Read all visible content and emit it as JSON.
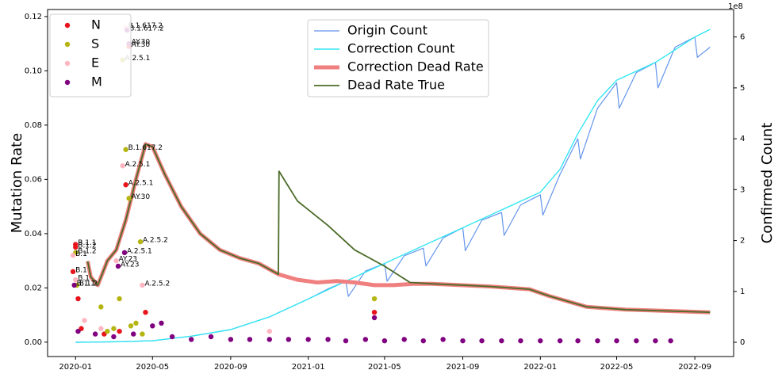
{
  "chart_data": {
    "type": "scatter",
    "ylabel": "Mutation Rate",
    "y2label": "Confirmed Count",
    "y2offset": "1e8",
    "xlim": [
      "2019-11-18",
      "2022-11-01"
    ],
    "ylim": [
      -0.0053,
      0.1226
    ],
    "y2lim": [
      -0.28,
      6.54
    ],
    "xticks": [
      {
        "value": "2020-01-01",
        "label": "2020-01"
      },
      {
        "value": "2020-05-01",
        "label": "2020-05"
      },
      {
        "value": "2020-09-01",
        "label": "2020-09"
      },
      {
        "value": "2021-01-01",
        "label": "2021-01"
      },
      {
        "value": "2021-05-01",
        "label": "2021-05"
      },
      {
        "value": "2021-09-01",
        "label": "2021-09"
      },
      {
        "value": "2022-01-01",
        "label": "2022-01"
      },
      {
        "value": "2022-05-01",
        "label": "2022-05"
      },
      {
        "value": "2022-09-01",
        "label": "2022-09"
      }
    ],
    "yticks": [
      {
        "value": 0,
        "label": "0.00"
      },
      {
        "value": 0.02,
        "label": "0.02"
      },
      {
        "value": 0.04,
        "label": "0.04"
      },
      {
        "value": 0.06,
        "label": "0.06"
      },
      {
        "value": 0.08,
        "label": "0.08"
      },
      {
        "value": 0.1,
        "label": "0.10"
      },
      {
        "value": 0.12,
        "label": "0.12"
      }
    ],
    "y2ticks": [
      0,
      1,
      2,
      3,
      4,
      5,
      6
    ],
    "legend": [
      "upper left",
      "upper center"
    ],
    "series": [
      {
        "name": "Origin Count",
        "type": "line",
        "axis": "y2",
        "color": "#6495ed",
        "width": 1.2,
        "legend": 1,
        "x": [
          "2020-01-01",
          "2020-03-01",
          "2020-05-01",
          "2020-07-01",
          "2020-09-01",
          "2020-11-01",
          "2021-01-01",
          "2021-02-01",
          "2021-03-01",
          "2021-03-05",
          "2021-04-01",
          "2021-05-01",
          "2021-05-05",
          "2021-06-01",
          "2021-07-01",
          "2021-07-05",
          "2021-08-01",
          "2021-09-01",
          "2021-09-05",
          "2021-10-01",
          "2021-11-01",
          "2021-11-05",
          "2021-12-01",
          "2022-01-01",
          "2022-01-05",
          "2022-02-01",
          "2022-03-01",
          "2022-03-05",
          "2022-04-01",
          "2022-05-01",
          "2022-05-05",
          "2022-06-01",
          "2022-07-01",
          "2022-07-05",
          "2022-08-01",
          "2022-09-01",
          "2022-09-05",
          "2022-09-25"
        ],
        "values": [
          0,
          0.01,
          0.03,
          0.12,
          0.25,
          0.5,
          0.85,
          1.05,
          1.2,
          0.9,
          1.4,
          1.55,
          1.2,
          1.7,
          1.85,
          1.5,
          2.05,
          2.25,
          1.8,
          2.4,
          2.55,
          2.1,
          2.7,
          2.9,
          2.5,
          3.3,
          4.0,
          3.6,
          4.6,
          5.1,
          4.6,
          5.3,
          5.5,
          5.0,
          5.8,
          6.0,
          5.6,
          5.8
        ]
      },
      {
        "name": "Correction Count",
        "type": "line",
        "axis": "y2",
        "color": "#33e6f2",
        "width": 1.4,
        "legend": 1,
        "x": [
          "2020-01-01",
          "2020-03-01",
          "2020-05-01",
          "2020-07-01",
          "2020-09-01",
          "2020-11-01",
          "2021-01-01",
          "2021-03-01",
          "2021-05-01",
          "2021-07-01",
          "2021-09-01",
          "2021-11-01",
          "2022-01-01",
          "2022-02-01",
          "2022-03-01",
          "2022-04-01",
          "2022-05-01",
          "2022-07-01",
          "2022-09-01",
          "2022-09-25"
        ],
        "values": [
          0,
          0.01,
          0.03,
          0.12,
          0.25,
          0.5,
          0.85,
          1.2,
          1.55,
          1.9,
          2.25,
          2.6,
          2.95,
          3.4,
          4.1,
          4.75,
          5.15,
          5.5,
          6.0,
          6.15
        ]
      },
      {
        "name": "Correction Dead Rate",
        "type": "line",
        "color": "#f08080",
        "width": 5,
        "legend": 1,
        "x": [
          "2020-01-20",
          "2020-01-25",
          "2020-02-05",
          "2020-02-20",
          "2020-03-05",
          "2020-03-20",
          "2020-04-05",
          "2020-04-20",
          "2020-05-01",
          "2020-05-20",
          "2020-06-15",
          "2020-07-15",
          "2020-08-15",
          "2020-09-15",
          "2020-10-15",
          "2020-11-15",
          "2020-12-15",
          "2021-01-15",
          "2021-02-15",
          "2021-03-15",
          "2021-04-15",
          "2021-05-15",
          "2021-06-15",
          "2021-07-15",
          "2021-10-15",
          "2021-12-15",
          "2022-01-15",
          "2022-03-15",
          "2022-05-15",
          "2022-09-25"
        ],
        "values": [
          0.0298,
          0.024,
          0.021,
          0.03,
          0.034,
          0.045,
          0.06,
          0.073,
          0.072,
          0.062,
          0.05,
          0.04,
          0.034,
          0.031,
          0.029,
          0.025,
          0.023,
          0.022,
          0.0225,
          0.022,
          0.021,
          0.021,
          0.0215,
          0.0215,
          0.0205,
          0.0195,
          0.017,
          0.013,
          0.012,
          0.011
        ]
      },
      {
        "name": "Dead Rate True",
        "type": "line",
        "color": "#4b6b28",
        "width": 1.8,
        "legend": 1,
        "x": [
          "2020-01-20",
          "2020-01-25",
          "2020-02-05",
          "2020-02-20",
          "2020-03-05",
          "2020-03-20",
          "2020-04-05",
          "2020-04-20",
          "2020-05-01",
          "2020-05-20",
          "2020-06-15",
          "2020-07-15",
          "2020-08-15",
          "2020-09-15",
          "2020-10-15",
          "2020-11-15",
          "2020-11-16",
          "2020-12-15",
          "2021-02-01",
          "2021-03-15",
          "2021-05-01",
          "2021-06-10",
          "2021-07-15",
          "2021-10-15",
          "2021-12-15",
          "2022-01-15",
          "2022-03-15",
          "2022-05-15",
          "2022-09-25"
        ],
        "values": [
          0.0298,
          0.024,
          0.021,
          0.03,
          0.034,
          0.045,
          0.06,
          0.073,
          0.072,
          0.062,
          0.05,
          0.04,
          0.034,
          0.031,
          0.029,
          0.025,
          0.063,
          0.052,
          0.043,
          0.034,
          0.028,
          0.022,
          0.0215,
          0.0205,
          0.0195,
          0.017,
          0.013,
          0.012,
          0.011
        ]
      },
      {
        "name": "N",
        "type": "scatter",
        "color": "#e8141c",
        "legend": 0,
        "x": [
          "2020-01-01",
          "2020-01-01",
          "2019-12-28",
          "2020-03-20",
          "2020-03-25",
          "2020-04-20",
          "2021-04-15",
          "2020-01-05",
          "2020-01-10",
          "2020-02-15",
          "2020-03-10"
        ],
        "values": [
          0.036,
          0.035,
          0.026,
          0.058,
          0.109,
          0.011,
          0.011,
          0.016,
          0.005,
          0.003,
          0.004
        ],
        "labels": [
          "B.1.1",
          "B.1.2",
          "B.1",
          "A.2.5.1",
          "AY.30",
          null,
          null,
          null,
          null,
          null,
          null
        ]
      },
      {
        "name": "S",
        "type": "scatter",
        "color": "#b5b512",
        "legend": 0,
        "x": [
          "2020-03-15",
          "2020-03-20",
          "2020-03-25",
          "2020-04-12",
          "2020-01-01",
          "2020-01-03",
          "2021-04-15",
          "2020-03-10",
          "2020-02-10",
          "2020-03-28",
          "2020-04-05",
          "2020-02-20",
          "2020-03-01",
          "2020-04-15"
        ],
        "values": [
          0.104,
          0.071,
          0.053,
          0.037,
          0.033,
          0.021,
          0.016,
          0.016,
          0.013,
          0.006,
          0.007,
          0.004,
          0.005,
          0.003
        ],
        "labels": [
          "A.2.5.1",
          "B.1.617.2",
          "AY.30",
          "A.2.5.2",
          "B.1.2",
          "B.1.2",
          null,
          null,
          null,
          null,
          null,
          null,
          null,
          null
        ]
      },
      {
        "name": "E",
        "type": "scatter",
        "color": "#ffb6c1",
        "legend": 0,
        "x": [
          "2020-03-20",
          "2020-03-15",
          "2019-12-28",
          "2020-03-05",
          "2020-04-15",
          "2020-01-01",
          "2020-01-15",
          "2020-02-10",
          "2020-11-01"
        ],
        "values": [
          0.116,
          0.065,
          0.032,
          0.03,
          0.021,
          0.023,
          0.008,
          0.005,
          0.004
        ],
        "labels": [
          "B.1.617.2",
          "A.2.5.1",
          "B.1",
          "AY.23",
          "A.2.5.2",
          "B.1",
          null,
          null,
          null
        ]
      },
      {
        "name": "M",
        "type": "scatter",
        "color": "#800080",
        "legend": 0,
        "x": [
          "2020-03-22",
          "2020-03-25",
          "2020-03-18",
          "2020-03-08",
          "2019-12-30",
          "2021-04-15",
          "2020-01-05",
          "2020-02-01",
          "2020-03-01",
          "2020-04-01",
          "2020-05-01",
          "2020-05-15",
          "2020-06-01",
          "2020-07-01",
          "2020-08-01",
          "2020-09-01",
          "2020-10-01",
          "2020-11-01",
          "2020-12-01",
          "2021-01-01",
          "2021-02-01",
          "2021-03-01",
          "2021-04-01",
          "2021-05-01",
          "2021-06-01",
          "2021-07-01",
          "2021-08-01",
          "2021-09-01",
          "2021-10-01",
          "2021-11-01",
          "2021-12-01",
          "2022-01-01",
          "2022-02-01",
          "2022-03-01",
          "2022-04-01",
          "2022-05-01",
          "2022-06-01",
          "2022-07-01",
          "2022-07-25"
        ],
        "values": [
          0.115,
          0.11,
          0.033,
          0.028,
          0.021,
          0.009,
          0.004,
          0.003,
          0.002,
          0.003,
          0.006,
          0.007,
          0.002,
          0.001,
          0.002,
          0.001,
          0.001,
          0.001,
          0.001,
          0.001,
          0.001,
          0.0005,
          0.001,
          0.0005,
          0.001,
          0.0005,
          0.001,
          0.0005,
          0.0005,
          0.0005,
          0.0005,
          0.0005,
          0.0005,
          0.0005,
          0.0005,
          0.0005,
          0.0005,
          0.0005,
          0.0005
        ],
        "labels": [
          "B.1.617.2",
          "AY.30",
          "A.2.5.1",
          "AY.23",
          "B.1.1",
          null,
          null,
          null,
          null,
          null,
          null,
          null,
          null,
          null,
          null,
          null,
          null,
          null,
          null,
          null,
          null,
          null,
          null,
          null,
          null,
          null,
          null,
          null,
          null,
          null,
          null,
          null,
          null,
          null,
          null,
          null,
          null,
          null,
          null
        ]
      }
    ]
  }
}
